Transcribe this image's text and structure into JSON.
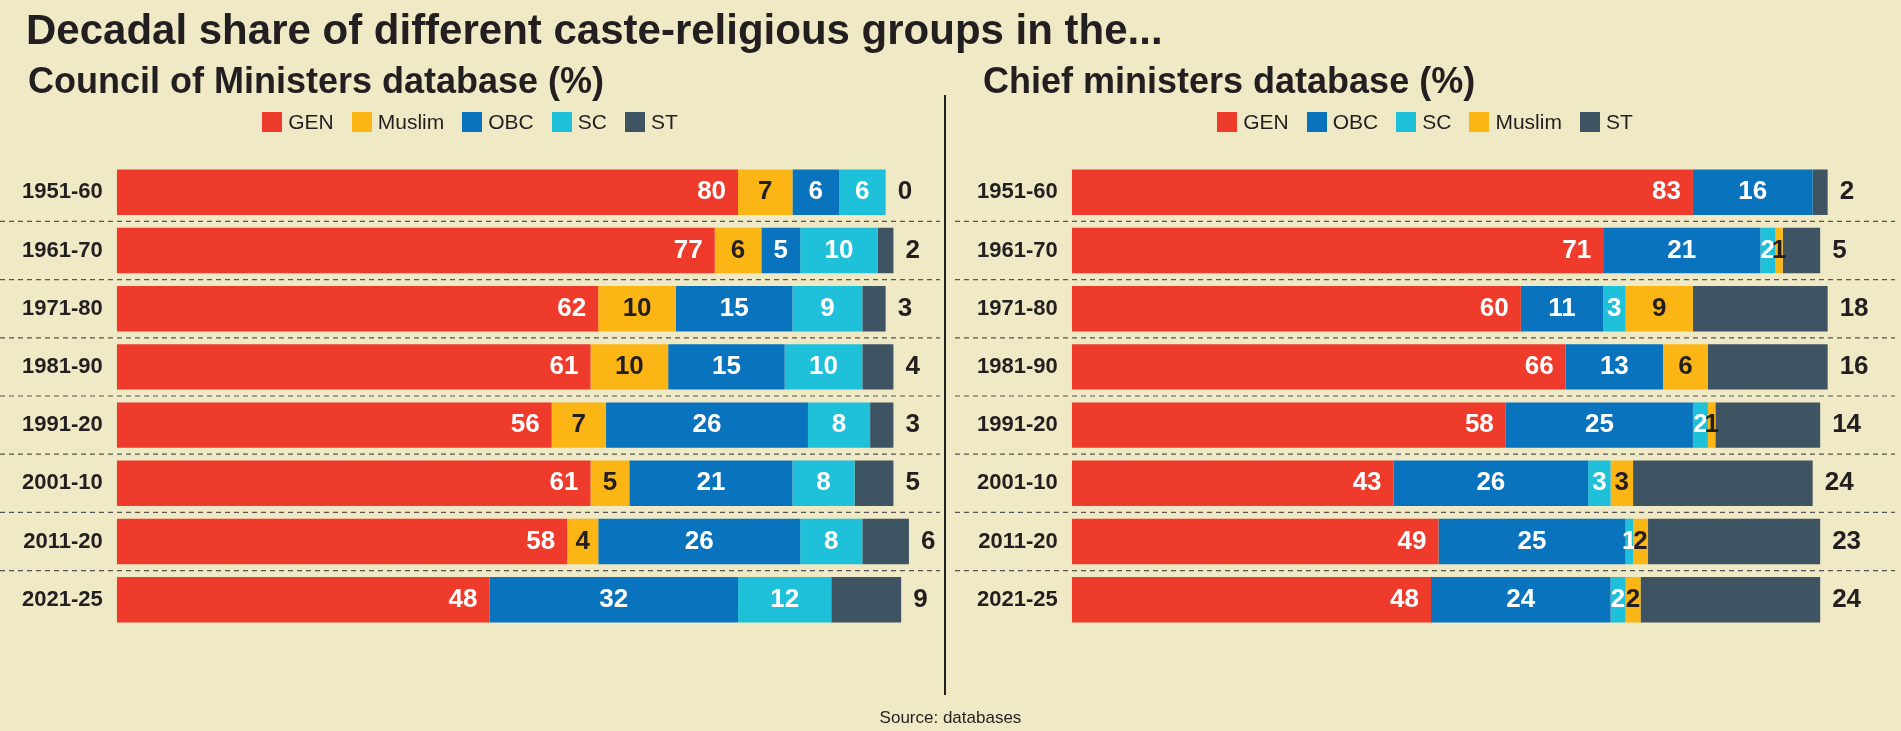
{
  "chart_data": [
    {
      "type": "bar",
      "orientation": "horizontal",
      "stacked": true,
      "title": "Decadal share of different caste-religious groups in the...",
      "subtitle": "Council of Ministers database (%)",
      "legend": "top",
      "grid": "y",
      "tick_labels": "y",
      "xlim": [
        0,
        106
      ],
      "categories": [
        "1951-60",
        "1961-70",
        "1971-80",
        "1981-90",
        "1991-20",
        "2001-10",
        "2011-20",
        "2021-25"
      ],
      "series": [
        {
          "name": "GEN",
          "color": "#ee3b2b",
          "values": [
            80,
            77,
            62,
            61,
            56,
            61,
            58,
            48
          ],
          "value_labels": [
            "80",
            "77",
            "62",
            "61",
            "56",
            "61",
            "58",
            "48"
          ]
        },
        {
          "name": "Muslim",
          "color": "#fbb615",
          "values": [
            7,
            6,
            10,
            10,
            7,
            5,
            4,
            null
          ],
          "value_labels": [
            "7",
            "6",
            "10",
            "10",
            "7",
            "5",
            "4",
            null
          ]
        },
        {
          "name": "OBC",
          "color": "#0a73bd",
          "values": [
            6,
            5,
            15,
            15,
            26,
            21,
            26,
            32
          ],
          "value_labels": [
            "6",
            "5",
            "15",
            "15",
            "26",
            "21",
            "26",
            "32"
          ]
        },
        {
          "name": "SC",
          "color": "#1fc0da",
          "values": [
            6,
            10,
            9,
            10,
            8,
            8,
            8,
            12
          ],
          "value_labels": [
            "6",
            "10",
            "9",
            "10",
            "8",
            "8",
            "8",
            "12"
          ]
        },
        {
          "name": "ST",
          "color": "#3e5463",
          "values": [
            0,
            2,
            3,
            4,
            3,
            5,
            6,
            9
          ],
          "value_labels": [
            "0",
            "2",
            "3",
            "4",
            "3",
            "5",
            "6",
            "9"
          ]
        }
      ]
    },
    {
      "type": "bar",
      "orientation": "horizontal",
      "stacked": true,
      "subtitle": "Chief ministers database (%)",
      "legend": "top",
      "grid": "y",
      "tick_labels": "y",
      "xlim": [
        0,
        110
      ],
      "annotations": [
        "Source: databases"
      ],
      "categories": [
        "1951-60",
        "1961-70",
        "1971-80",
        "1981-90",
        "1991-20",
        "2001-10",
        "2011-20",
        "2021-25"
      ],
      "series": [
        {
          "name": "GEN",
          "color": "#ee3b2b",
          "values": [
            83,
            71,
            60,
            66,
            58,
            43,
            49,
            48
          ],
          "value_labels": [
            "83",
            "71",
            "60",
            "66",
            "58",
            "43",
            "49",
            "48"
          ]
        },
        {
          "name": "OBC",
          "color": "#0a73bd",
          "values": [
            16,
            21,
            11,
            13,
            25,
            26,
            25,
            24
          ],
          "value_labels": [
            "16",
            "21",
            "11",
            "13",
            "25",
            "26",
            "25",
            "24"
          ]
        },
        {
          "name": "SC",
          "color": "#1fc0da",
          "values": [
            null,
            2,
            3,
            null,
            2,
            3,
            1,
            2
          ],
          "value_labels": [
            null,
            "2",
            "3",
            null,
            "2",
            "3",
            "1",
            "2"
          ]
        },
        {
          "name": "Muslim",
          "color": "#fbb615",
          "values": [
            null,
            1,
            9,
            6,
            1,
            3,
            2,
            2
          ],
          "value_labels": [
            null,
            "1",
            "9",
            "6",
            "1",
            "3",
            "2",
            "2"
          ]
        },
        {
          "name": "ST",
          "color": "#3e5463",
          "values": [
            2,
            5,
            18,
            16,
            14,
            24,
            23,
            24
          ],
          "value_labels": [
            "2",
            "5",
            "18",
            "16",
            "14",
            "24",
            "23",
            "24"
          ]
        }
      ]
    }
  ]
}
